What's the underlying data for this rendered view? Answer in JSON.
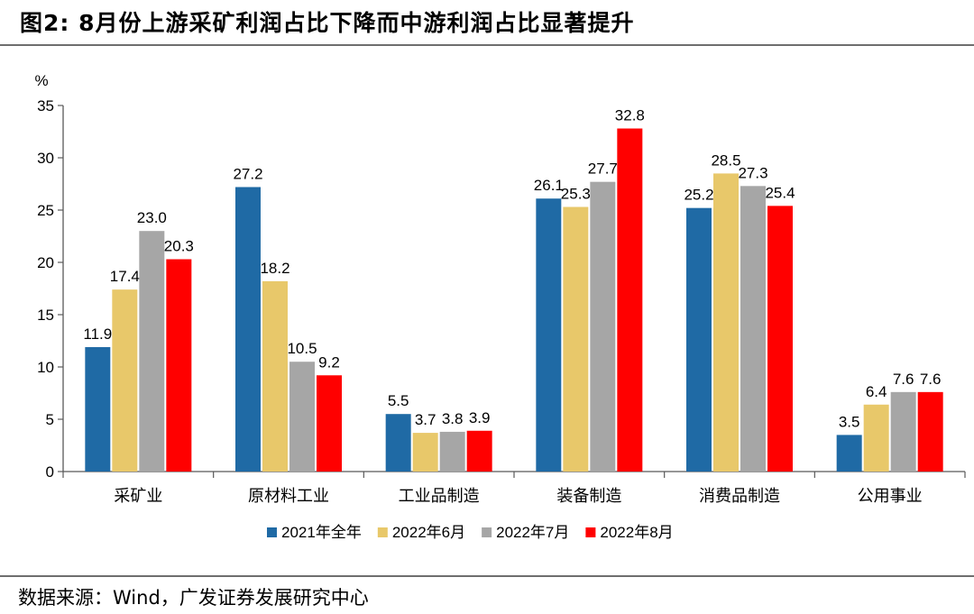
{
  "header": {
    "title": "图2: 8月份上游采矿利润占比下降而中游利润占比显著提升"
  },
  "footer": {
    "source": "数据来源：Wind，广发证券发展研究中心"
  },
  "chart_data": {
    "type": "bar",
    "unit_label": "%",
    "categories": [
      "采矿业",
      "原材料工业",
      "工业品制造",
      "装备制造",
      "消费品制造",
      "公用事业"
    ],
    "series": [
      {
        "name": "2021年全年",
        "color": "#1f6aa5",
        "values": [
          11.9,
          27.2,
          5.5,
          26.1,
          25.2,
          3.5
        ]
      },
      {
        "name": "2022年6月",
        "color": "#e8c86a",
        "values": [
          17.4,
          18.2,
          3.7,
          25.3,
          28.5,
          6.4
        ]
      },
      {
        "name": "2022年7月",
        "color": "#a6a6a6",
        "values": [
          23.0,
          10.5,
          3.8,
          27.7,
          27.3,
          7.6
        ]
      },
      {
        "name": "2022年8月",
        "color": "#ff0000",
        "values": [
          20.3,
          9.2,
          3.9,
          32.8,
          25.4,
          7.6
        ]
      }
    ],
    "ylim": [
      0,
      35
    ],
    "yticks": [
      0,
      5,
      10,
      15,
      20,
      25,
      30,
      35
    ],
    "grid": false,
    "legend_position": "bottom"
  }
}
